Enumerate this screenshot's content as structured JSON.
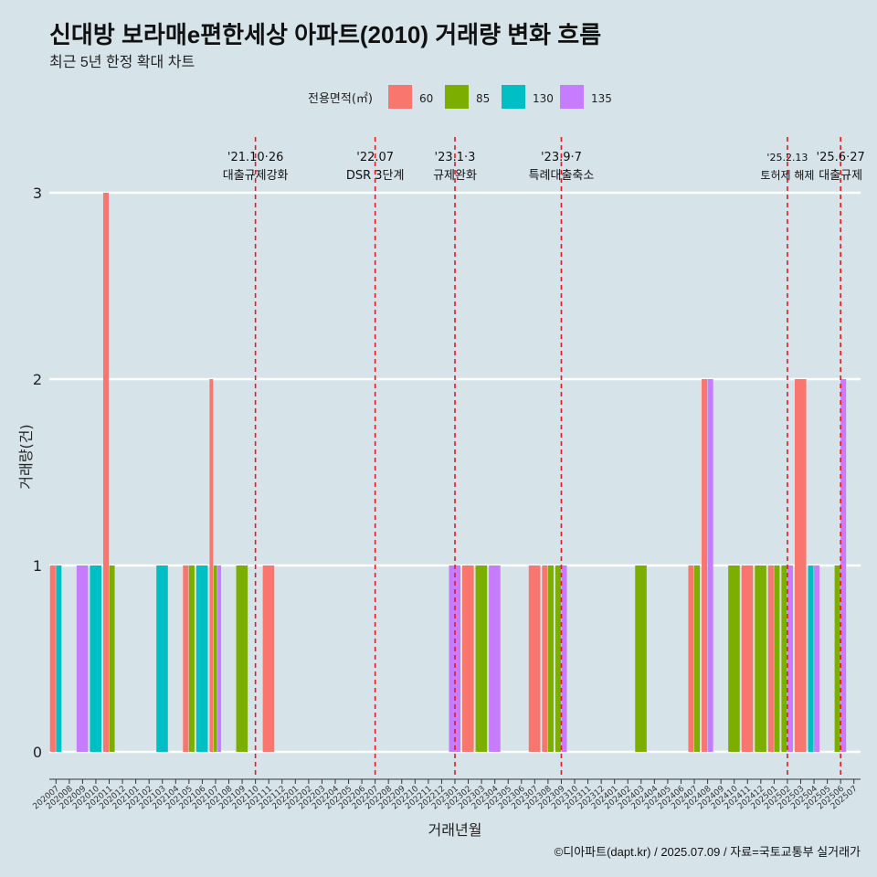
{
  "header": {
    "title": "신대방 보라매e편한세상 아파트(2010) 거래량 변화 흐름",
    "subtitle": "최근 5년 한정 확대 차트"
  },
  "footer": {
    "caption": "©디아파트(dapt.kr) / 2025.07.09 / 자료=국토교통부 실거래가"
  },
  "chart_data": {
    "type": "bar",
    "xlabel": "거래년월",
    "ylabel": "거래량(건)",
    "ylim": [
      0,
      3
    ],
    "yticks": [
      0,
      1,
      2,
      3
    ],
    "grid": "horizontal",
    "legend": {
      "title": "전용면적(㎡)",
      "position": "top",
      "entries": [
        {
          "label": "60",
          "color": "#F8766D"
        },
        {
          "label": "85",
          "color": "#7CAE00"
        },
        {
          "label": "130",
          "color": "#00BFC4"
        },
        {
          "label": "135",
          "color": "#C77CFF"
        }
      ]
    },
    "categories": [
      "202007",
      "202008",
      "202009",
      "202010",
      "202011",
      "202012",
      "202101",
      "202102",
      "202103",
      "202104",
      "202105",
      "202106",
      "202107",
      "202108",
      "202109",
      "202110",
      "202111",
      "202112",
      "202201",
      "202202",
      "202203",
      "202204",
      "202205",
      "202206",
      "202207",
      "202208",
      "202209",
      "202210",
      "202211",
      "202212",
      "202301",
      "202302",
      "202303",
      "202304",
      "202305",
      "202306",
      "202307",
      "202308",
      "202309",
      "202310",
      "202311",
      "202312",
      "202401",
      "202402",
      "202403",
      "202404",
      "202405",
      "202406",
      "202407",
      "202408",
      "202409",
      "202410",
      "202411",
      "202412",
      "202501",
      "202502",
      "202503",
      "202504",
      "202505",
      "202506",
      "202507"
    ],
    "series": [
      {
        "name": "60",
        "color": "#F8766D",
        "values": [
          1,
          0,
          0,
          0,
          3,
          0,
          0,
          0,
          0,
          0,
          1,
          0,
          2,
          0,
          0,
          0,
          1,
          0,
          0,
          0,
          0,
          0,
          0,
          0,
          0,
          0,
          0,
          0,
          0,
          0,
          0,
          1,
          0,
          0,
          0,
          0,
          1,
          1,
          0,
          0,
          0,
          0,
          0,
          0,
          0,
          0,
          0,
          0,
          1,
          2,
          0,
          0,
          1,
          0,
          1,
          0,
          2,
          0,
          0,
          0,
          0
        ]
      },
      {
        "name": "85",
        "color": "#7CAE00",
        "values": [
          0,
          0,
          0,
          0,
          1,
          0,
          0,
          0,
          0,
          0,
          1,
          0,
          1,
          0,
          1,
          0,
          0,
          0,
          0,
          0,
          0,
          0,
          0,
          0,
          0,
          0,
          0,
          0,
          0,
          0,
          0,
          0,
          1,
          0,
          0,
          0,
          0,
          1,
          1,
          0,
          0,
          0,
          0,
          0,
          1,
          0,
          0,
          0,
          1,
          0,
          0,
          1,
          0,
          1,
          1,
          1,
          0,
          0,
          0,
          1,
          0
        ]
      },
      {
        "name": "130",
        "color": "#00BFC4",
        "values": [
          1,
          0,
          0,
          1,
          0,
          0,
          0,
          0,
          1,
          0,
          0,
          1,
          0,
          0,
          0,
          0,
          0,
          0,
          0,
          0,
          0,
          0,
          0,
          0,
          0,
          0,
          0,
          0,
          0,
          0,
          0,
          0,
          0,
          0,
          0,
          0,
          0,
          0,
          0,
          0,
          0,
          0,
          0,
          0,
          0,
          0,
          0,
          0,
          0,
          0,
          0,
          0,
          0,
          0,
          0,
          0,
          0,
          1,
          0,
          0,
          0
        ]
      },
      {
        "name": "135",
        "color": "#C77CFF",
        "values": [
          0,
          0,
          1,
          0,
          0,
          0,
          0,
          0,
          0,
          0,
          0,
          0,
          1,
          0,
          0,
          0,
          0,
          0,
          0,
          0,
          0,
          0,
          0,
          0,
          0,
          0,
          0,
          0,
          0,
          0,
          1,
          0,
          0,
          1,
          0,
          0,
          0,
          0,
          1,
          0,
          0,
          0,
          0,
          0,
          0,
          0,
          0,
          0,
          0,
          2,
          0,
          0,
          0,
          0,
          0,
          1,
          0,
          1,
          0,
          2,
          0
        ]
      }
    ],
    "annotations": [
      {
        "category": "202110",
        "date": "'21.10·26",
        "label": "대출규제강화"
      },
      {
        "category": "202207",
        "date": "'22.07",
        "label": "DSR 3단계"
      },
      {
        "category": "202301",
        "date": "'23.1·3",
        "label": "규제완화"
      },
      {
        "category": "202309",
        "date": "'23.9·7",
        "label": "특례대출축소"
      },
      {
        "category": "202502",
        "date": "'25.2.13",
        "label": "토허제 해제"
      },
      {
        "category": "202506",
        "date": "'25.6·27",
        "label": "대출규제"
      }
    ]
  }
}
